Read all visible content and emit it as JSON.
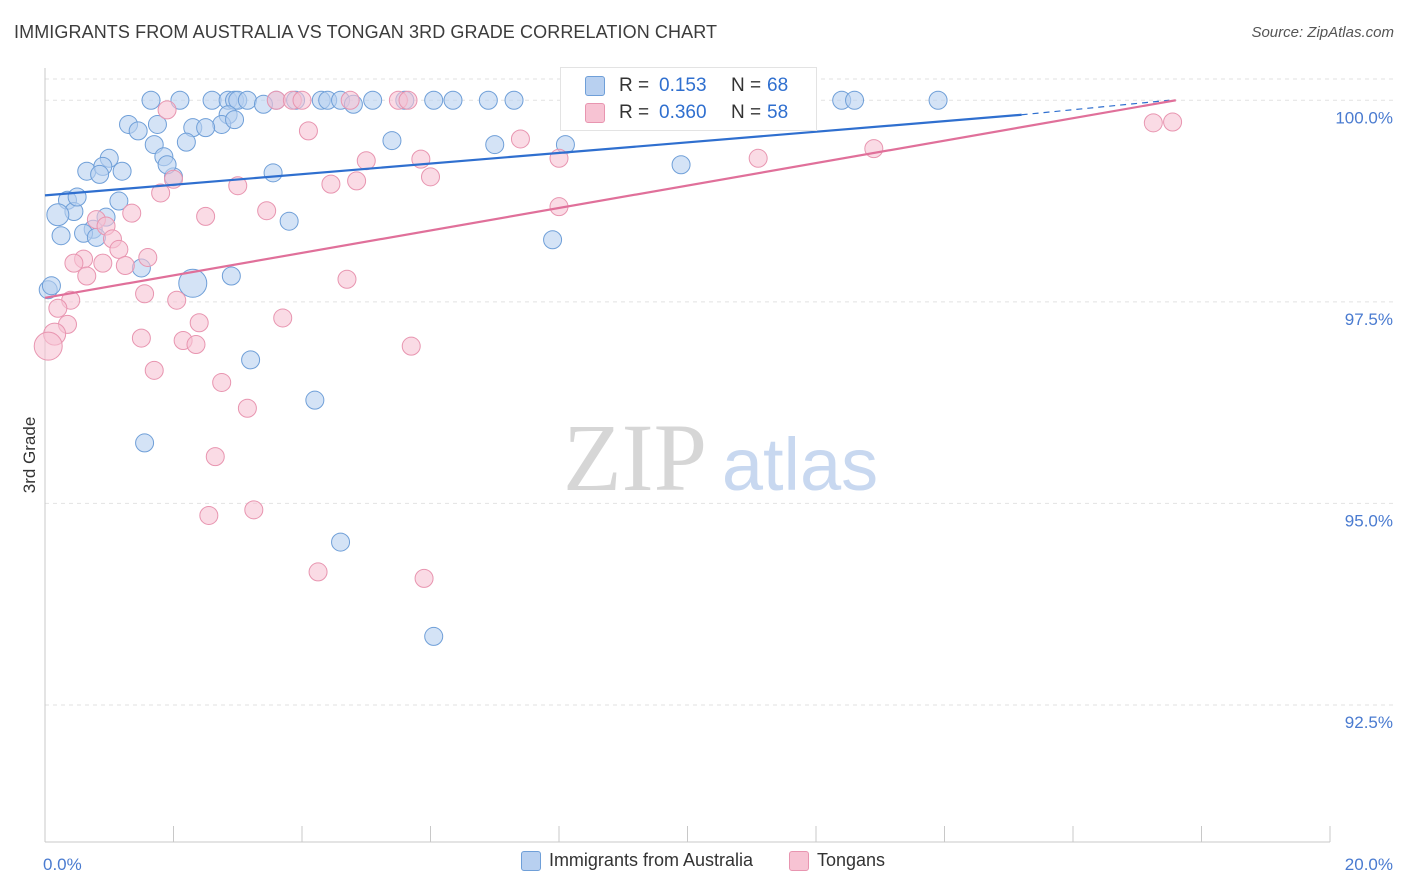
{
  "header": {
    "title": "IMMIGRANTS FROM AUSTRALIA VS TONGAN 3RD GRADE CORRELATION CHART",
    "source": "Source: ZipAtlas.com"
  },
  "watermark": {
    "zip": "ZIP",
    "atlas": "atlas"
  },
  "colors": {
    "blue_fill": "#b8d0f0",
    "blue_stroke": "#6f9fd8",
    "blue_line": "#2f6fcf",
    "pink_fill": "#f7c3d3",
    "pink_stroke": "#e895b0",
    "pink_line": "#e0709a",
    "tick_text": "#4a7bd0",
    "grid": "#e2e2e2"
  },
  "stats": {
    "r_label": "R =",
    "n_label": "N =",
    "rows": [
      {
        "r": "0.153",
        "n": "68"
      },
      {
        "r": "0.360",
        "n": "58"
      }
    ]
  },
  "chart_data": {
    "type": "scatter",
    "title": "IMMIGRANTS FROM AUSTRALIA VS TONGAN 3RD GRADE CORRELATION CHART",
    "xlabel": "",
    "ylabel": "3rd Grade",
    "xlim": [
      0,
      20
    ],
    "ylim": [
      90.8,
      100.4
    ],
    "x_tick_labels": [
      "0.0%",
      "20.0%"
    ],
    "y_ticks": [
      92.5,
      95.0,
      97.5,
      100.0
    ],
    "y_tick_labels": [
      "92.5%",
      "95.0%",
      "97.5%",
      "100.0%"
    ],
    "grid": true,
    "legend_position": "bottom-center",
    "series": [
      {
        "name": "Immigrants from Australia",
        "color": "#6f9fd8",
        "trend": {
          "x": [
            0,
            15.2
          ],
          "y": [
            98.82,
            99.82
          ],
          "dash_to": [
            17.5,
            100.0
          ]
        },
        "points": [
          [
            1.65,
            100.0
          ],
          [
            2.1,
            100.0
          ],
          [
            2.6,
            100.0
          ],
          [
            2.85,
            100.0
          ],
          [
            2.95,
            100.0
          ],
          [
            3.0,
            100.0
          ],
          [
            3.15,
            100.0
          ],
          [
            3.6,
            100.0
          ],
          [
            3.9,
            100.0
          ],
          [
            4.3,
            100.0
          ],
          [
            4.4,
            100.0
          ],
          [
            4.6,
            100.0
          ],
          [
            5.1,
            100.0
          ],
          [
            5.6,
            100.0
          ],
          [
            6.05,
            100.0
          ],
          [
            6.35,
            100.0
          ],
          [
            6.9,
            100.0
          ],
          [
            7.3,
            100.0
          ],
          [
            12.4,
            100.0
          ],
          [
            12.6,
            100.0
          ],
          [
            13.9,
            100.0
          ],
          [
            2.85,
            99.82
          ],
          [
            1.3,
            99.7
          ],
          [
            1.75,
            99.7
          ],
          [
            2.3,
            99.66
          ],
          [
            2.75,
            99.7
          ],
          [
            2.5,
            99.66
          ],
          [
            2.95,
            99.76
          ],
          [
            1.45,
            99.62
          ],
          [
            1.7,
            99.45
          ],
          [
            2.2,
            99.48
          ],
          [
            1.85,
            99.3
          ],
          [
            1.0,
            99.28
          ],
          [
            0.65,
            99.12
          ],
          [
            0.9,
            99.18
          ],
          [
            1.2,
            99.12
          ],
          [
            0.85,
            99.08
          ],
          [
            2.0,
            99.05
          ],
          [
            3.55,
            99.1
          ],
          [
            7.0,
            99.45
          ],
          [
            9.9,
            99.2
          ],
          [
            0.35,
            98.76
          ],
          [
            1.15,
            98.75
          ],
          [
            0.45,
            98.62
          ],
          [
            0.2,
            98.58
          ],
          [
            0.75,
            98.4
          ],
          [
            0.25,
            98.32
          ],
          [
            0.6,
            98.35
          ],
          [
            0.8,
            98.3
          ],
          [
            3.8,
            98.5
          ],
          [
            7.9,
            98.27
          ],
          [
            1.5,
            97.92
          ],
          [
            2.9,
            97.82
          ],
          [
            2.3,
            97.73
          ],
          [
            0.05,
            97.65
          ],
          [
            3.2,
            96.78
          ],
          [
            4.2,
            96.28
          ],
          [
            1.55,
            95.75
          ],
          [
            4.6,
            94.52
          ],
          [
            6.05,
            93.35
          ],
          [
            0.1,
            97.7
          ],
          [
            8.1,
            99.45
          ],
          [
            5.4,
            99.5
          ],
          [
            3.4,
            99.95
          ],
          [
            4.8,
            99.95
          ],
          [
            1.9,
            99.2
          ],
          [
            0.5,
            98.8
          ],
          [
            0.95,
            98.55
          ]
        ],
        "sizes": [
          9,
          9,
          9,
          9,
          9,
          9,
          9,
          9,
          9,
          9,
          9,
          9,
          9,
          9,
          9,
          9,
          9,
          9,
          9,
          9,
          9,
          9,
          9,
          9,
          9,
          9,
          9,
          9,
          9,
          9,
          9,
          9,
          9,
          9,
          9,
          9,
          9,
          9,
          9,
          9,
          9,
          9,
          9,
          9,
          11,
          9,
          9,
          9,
          9,
          9,
          9,
          9,
          9,
          14,
          9,
          9,
          9,
          9,
          9,
          9,
          9,
          9,
          9,
          9,
          9,
          9,
          9,
          9
        ]
      },
      {
        "name": "Tongans",
        "color": "#e895b0",
        "trend": {
          "x": [
            0,
            17.6
          ],
          "y": [
            97.55,
            100.0
          ]
        },
        "points": [
          [
            3.6,
            100.0
          ],
          [
            3.85,
            100.0
          ],
          [
            4.0,
            100.0
          ],
          [
            4.75,
            100.0
          ],
          [
            5.5,
            100.0
          ],
          [
            5.65,
            100.0
          ],
          [
            1.9,
            99.88
          ],
          [
            4.1,
            99.62
          ],
          [
            7.4,
            99.52
          ],
          [
            17.25,
            99.72
          ],
          [
            17.55,
            99.73
          ],
          [
            12.9,
            99.4
          ],
          [
            5.0,
            99.25
          ],
          [
            5.85,
            99.27
          ],
          [
            8.0,
            99.28
          ],
          [
            11.1,
            99.28
          ],
          [
            6.0,
            99.05
          ],
          [
            2.0,
            99.02
          ],
          [
            4.45,
            98.96
          ],
          [
            4.85,
            99.0
          ],
          [
            3.0,
            98.94
          ],
          [
            1.8,
            98.85
          ],
          [
            8.0,
            98.68
          ],
          [
            3.45,
            98.63
          ],
          [
            1.35,
            98.6
          ],
          [
            2.5,
            98.56
          ],
          [
            0.8,
            98.52
          ],
          [
            0.95,
            98.44
          ],
          [
            1.05,
            98.28
          ],
          [
            1.15,
            98.15
          ],
          [
            1.6,
            98.05
          ],
          [
            0.6,
            98.03
          ],
          [
            0.45,
            97.98
          ],
          [
            1.25,
            97.95
          ],
          [
            0.9,
            97.98
          ],
          [
            0.65,
            97.82
          ],
          [
            4.7,
            97.78
          ],
          [
            1.55,
            97.6
          ],
          [
            2.05,
            97.52
          ],
          [
            0.4,
            97.52
          ],
          [
            0.2,
            97.42
          ],
          [
            3.7,
            97.3
          ],
          [
            2.4,
            97.24
          ],
          [
            0.35,
            97.22
          ],
          [
            0.15,
            97.1
          ],
          [
            1.5,
            97.05
          ],
          [
            2.15,
            97.02
          ],
          [
            2.35,
            96.97
          ],
          [
            5.7,
            96.95
          ],
          [
            0.05,
            96.95
          ],
          [
            1.7,
            96.65
          ],
          [
            2.75,
            96.5
          ],
          [
            3.15,
            96.18
          ],
          [
            2.65,
            95.58
          ],
          [
            3.25,
            94.92
          ],
          [
            2.55,
            94.85
          ],
          [
            4.25,
            94.15
          ],
          [
            5.9,
            94.07
          ]
        ],
        "sizes": [
          9,
          9,
          9,
          9,
          9,
          9,
          9,
          9,
          9,
          9,
          9,
          9,
          9,
          9,
          9,
          9,
          9,
          9,
          9,
          9,
          9,
          9,
          9,
          9,
          9,
          9,
          9,
          9,
          9,
          9,
          9,
          9,
          9,
          9,
          9,
          9,
          9,
          9,
          9,
          9,
          9,
          9,
          9,
          9,
          11,
          9,
          9,
          9,
          9,
          14,
          9,
          9,
          9,
          9,
          9,
          9,
          9,
          9
        ]
      }
    ]
  },
  "legend": {
    "items": [
      {
        "label": "Immigrants from Australia"
      },
      {
        "label": "Tongans"
      }
    ]
  }
}
